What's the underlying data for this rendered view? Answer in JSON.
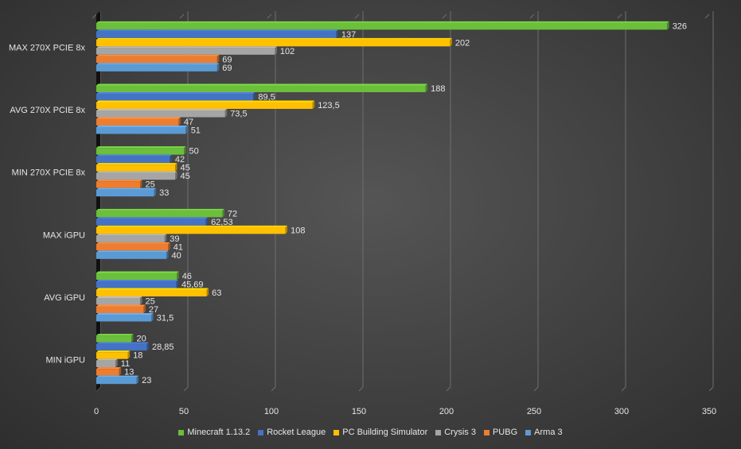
{
  "chart_data": {
    "type": "bar",
    "orientation": "horizontal",
    "categories": [
      "MAX  270X PCIE 8x",
      "AVG  270X PCIE 8x",
      "MIN 270X PCIE 8x",
      "MAX iGPU",
      "AVG iGPU",
      "MIN iGPU"
    ],
    "series": [
      {
        "name": "Minecraft 1.13.2",
        "color": "#6bbf3b",
        "values": [
          326,
          188,
          50,
          72,
          46,
          20
        ],
        "labels": [
          "326",
          "188",
          "50",
          "72",
          "46",
          "20"
        ]
      },
      {
        "name": "Rocket League",
        "color": "#4472c4",
        "values": [
          137,
          89.5,
          42,
          62.53,
          45.69,
          28.85
        ],
        "labels": [
          "137",
          "89,5",
          "42",
          "62,53",
          "45,69",
          "28,85"
        ]
      },
      {
        "name": "PC Building Simulator",
        "color": "#ffc000",
        "values": [
          202,
          123.5,
          45,
          108,
          63,
          18
        ],
        "labels": [
          "202",
          "123,5",
          "45",
          "108",
          "63",
          "18"
        ]
      },
      {
        "name": "Crysis 3",
        "color": "#a5a5a5",
        "values": [
          102,
          73.5,
          45,
          39,
          25,
          11
        ],
        "labels": [
          "102",
          "73,5",
          "45",
          "39",
          "25",
          "11"
        ]
      },
      {
        "name": "PUBG",
        "color": "#ed7d31",
        "values": [
          69,
          47,
          25,
          41,
          27,
          13
        ],
        "labels": [
          "69",
          "47",
          "25",
          "41",
          "27",
          "13"
        ]
      },
      {
        "name": "Arma 3",
        "color": "#5b9bd5",
        "values": [
          69,
          51,
          33,
          40,
          31.5,
          23
        ],
        "labels": [
          "69",
          "51",
          "33",
          "40",
          "31,5",
          "23"
        ]
      }
    ],
    "xlim": [
      0,
      350
    ],
    "xticks": [
      "0",
      "50",
      "100",
      "150",
      "200",
      "250",
      "300",
      "350"
    ],
    "grid": true,
    "legend_position": "bottom"
  }
}
